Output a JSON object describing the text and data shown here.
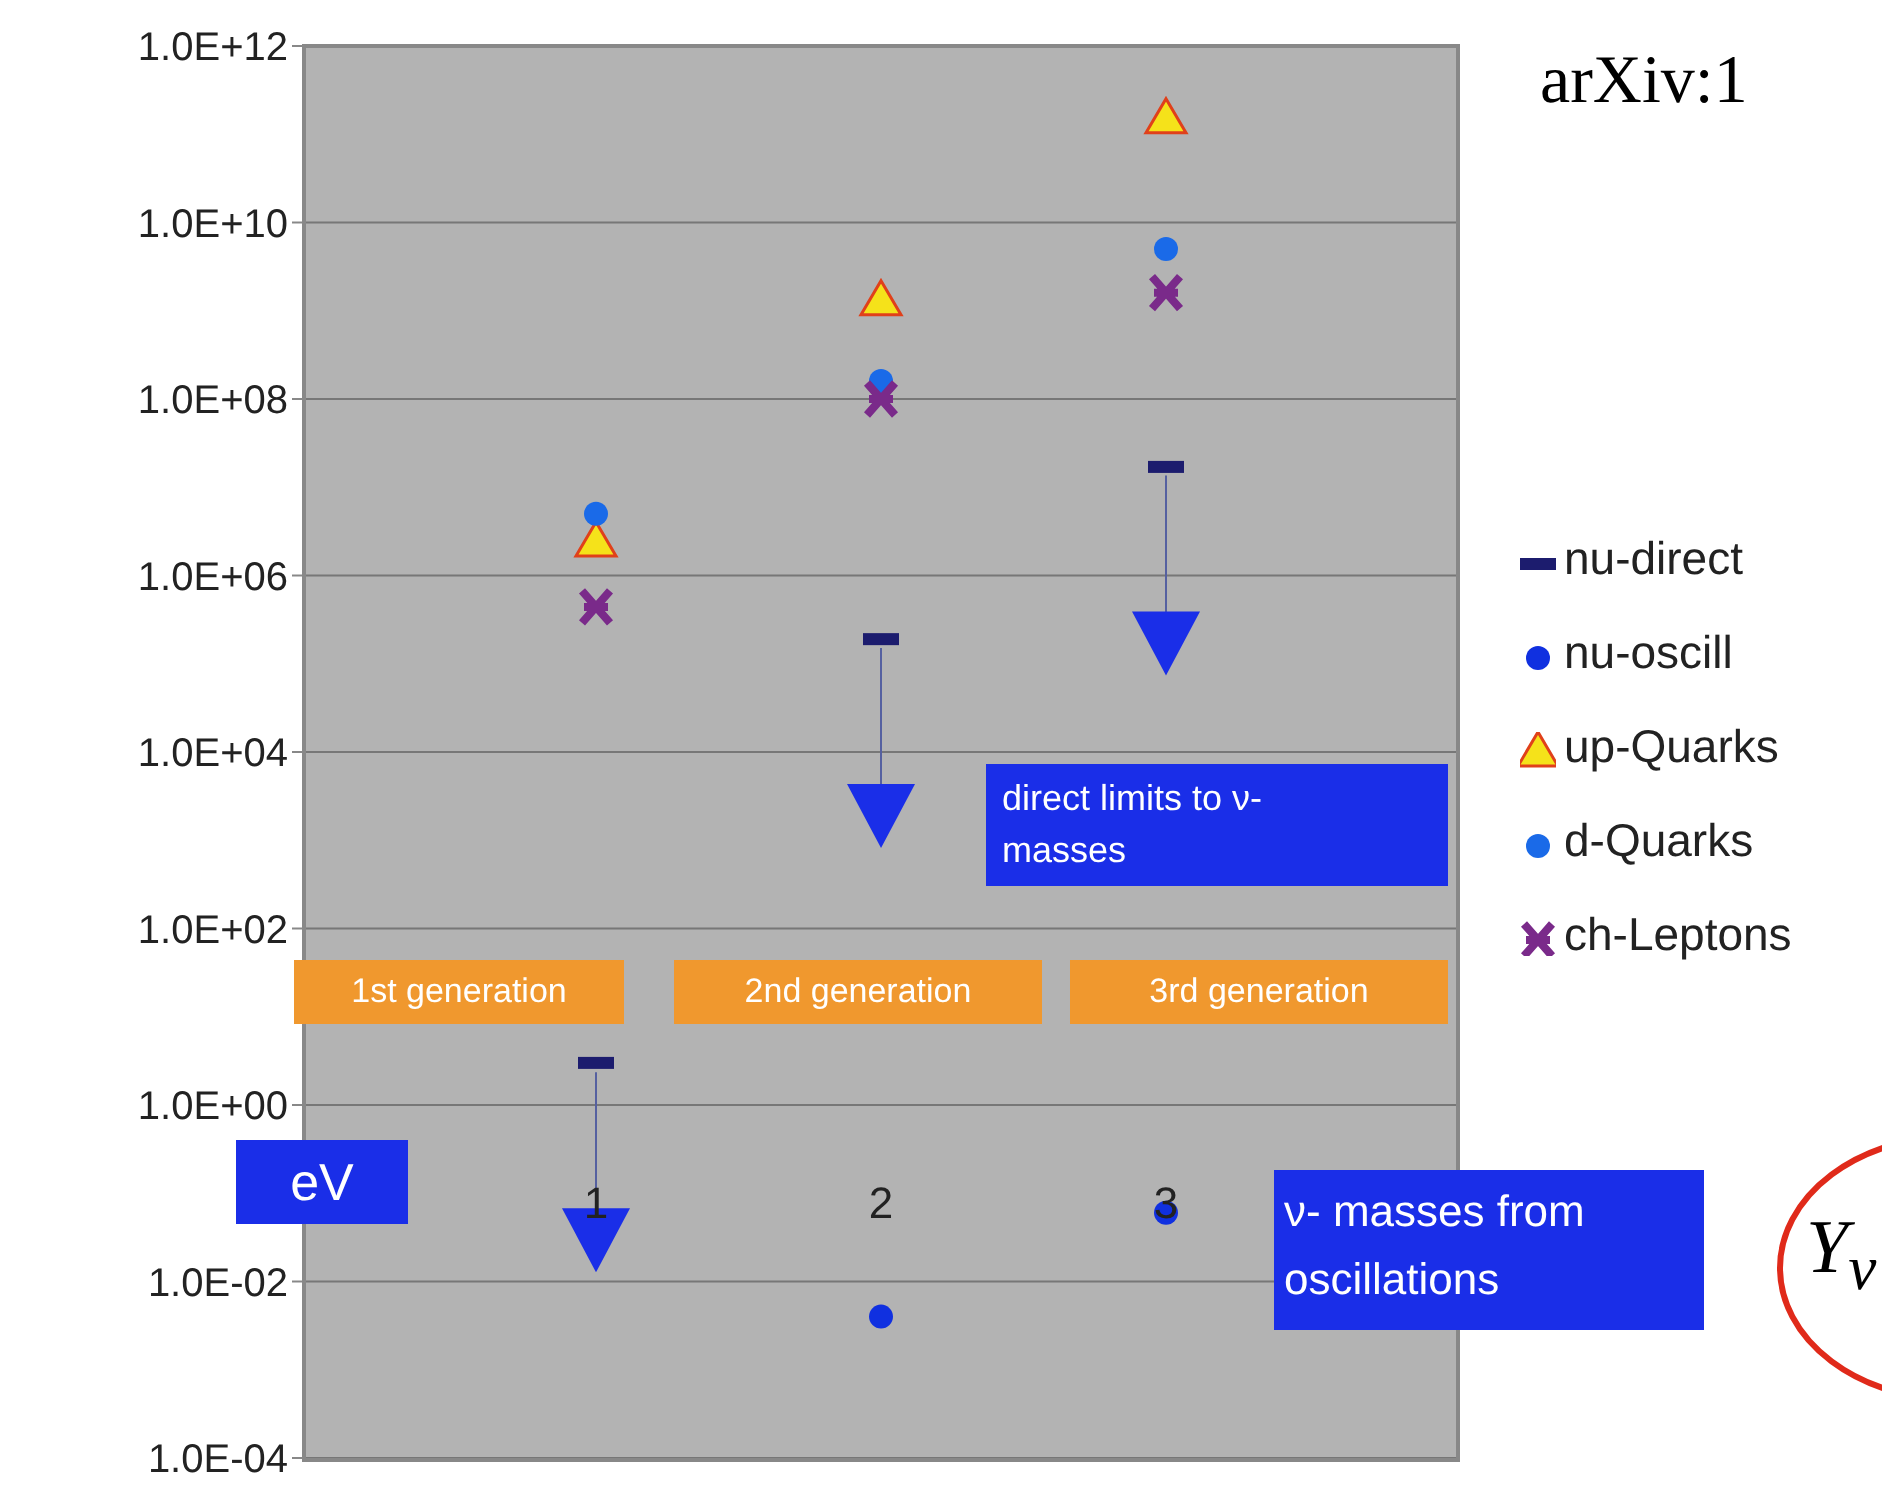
{
  "chart_data": {
    "type": "scatter",
    "ylabel": "eV",
    "categories": [
      "1",
      "2",
      "3"
    ],
    "series": [
      {
        "name": "nu-direct",
        "color": "#1c1c6e",
        "values": [
          3,
          190000,
          17000000
        ]
      },
      {
        "name": "nu-oscill",
        "color": "#1030e0",
        "marker": "circle",
        "values": [
          null,
          0.004,
          0.06
        ]
      },
      {
        "name": "up-Quarks",
        "color": "#f5e21a",
        "marker": "triangle",
        "values": [
          2400000,
          1300000000,
          150000000000
        ]
      },
      {
        "name": "d-Quarks",
        "color": "#1a6ae8",
        "marker": "circle",
        "values": [
          5000000,
          160000000,
          5000000000
        ]
      },
      {
        "name": "ch-Leptons",
        "color": "#7a2a8a",
        "marker": "cross",
        "values": [
          440000,
          100000000,
          1600000000
        ]
      }
    ],
    "log": "y",
    "ylim": [
      0.0001,
      1000000000000
    ],
    "yticks": [
      {
        "value": 0.0001,
        "label": "1.0E-04"
      },
      {
        "value": 0.01,
        "label": "1.0E-02"
      },
      {
        "value": 1,
        "label": "1.0E+00"
      },
      {
        "value": 100,
        "label": "1.0E+02"
      },
      {
        "value": 10000,
        "label": "1.0E+04"
      },
      {
        "value": 1000000,
        "label": "1.0E+06"
      },
      {
        "value": 100000000,
        "label": "1.0E+08"
      },
      {
        "value": 10000000000,
        "label": "1.0E+10"
      },
      {
        "value": 1000000000000,
        "label": "1.0E+12"
      }
    ],
    "grid": "y",
    "legend": "right",
    "annotations": [
      "1st generation",
      "2nd generation",
      "3rd generation",
      "direct limits to ν-masses",
      "ν- masses from oscillations",
      "arXiv:1",
      "Y$_{ν}$"
    ]
  }
}
